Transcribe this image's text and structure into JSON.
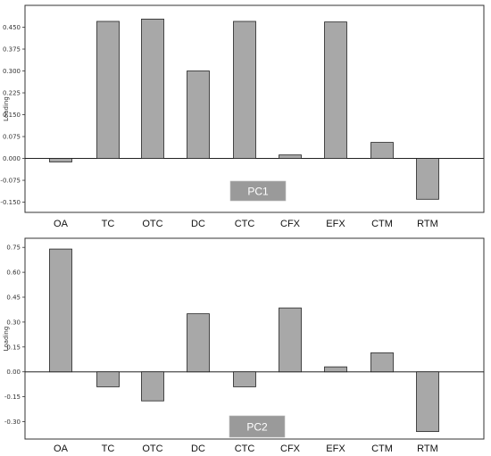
{
  "chart_data": [
    {
      "type": "bar",
      "annotation": "PC1",
      "ylabel": "Loading",
      "categories": [
        "OA",
        "TC",
        "OTC",
        "DC",
        "CTC",
        "CFX",
        "EFX",
        "CTM",
        "RTM"
      ],
      "values": [
        -0.012,
        0.47,
        0.478,
        0.3,
        0.47,
        0.012,
        0.468,
        0.055,
        -0.14
      ],
      "yticks": [
        -0.15,
        -0.075,
        0.0,
        0.075,
        0.15,
        0.225,
        0.3,
        0.375,
        0.45
      ],
      "ytick_labels": [
        "-0.150",
        "-0.075",
        "0.000",
        "0.075",
        "0.150",
        "0.225",
        "0.300",
        "0.375",
        "0.450"
      ],
      "ylim": [
        -0.185,
        0.525
      ],
      "bar_color": "#a8a8a8",
      "label_box_color": "#9a9a9a"
    },
    {
      "type": "bar",
      "annotation": "PC2",
      "ylabel": "Loading",
      "categories": [
        "OA",
        "TC",
        "OTC",
        "DC",
        "CTC",
        "CFX",
        "EFX",
        "CTM",
        "RTM"
      ],
      "values": [
        0.74,
        -0.09,
        -0.175,
        0.35,
        -0.09,
        0.385,
        0.03,
        0.115,
        -0.36
      ],
      "yticks": [
        -0.3,
        -0.15,
        0.0,
        0.15,
        0.3,
        0.45,
        0.6,
        0.75
      ],
      "ytick_labels": [
        "-0.30",
        "-0.15",
        "0.00",
        "0.15",
        "0.30",
        "0.45",
        "0.60",
        "0.75"
      ],
      "ylim": [
        -0.405,
        0.805
      ],
      "bar_color": "#a8a8a8",
      "label_box_color": "#9a9a9a"
    }
  ]
}
